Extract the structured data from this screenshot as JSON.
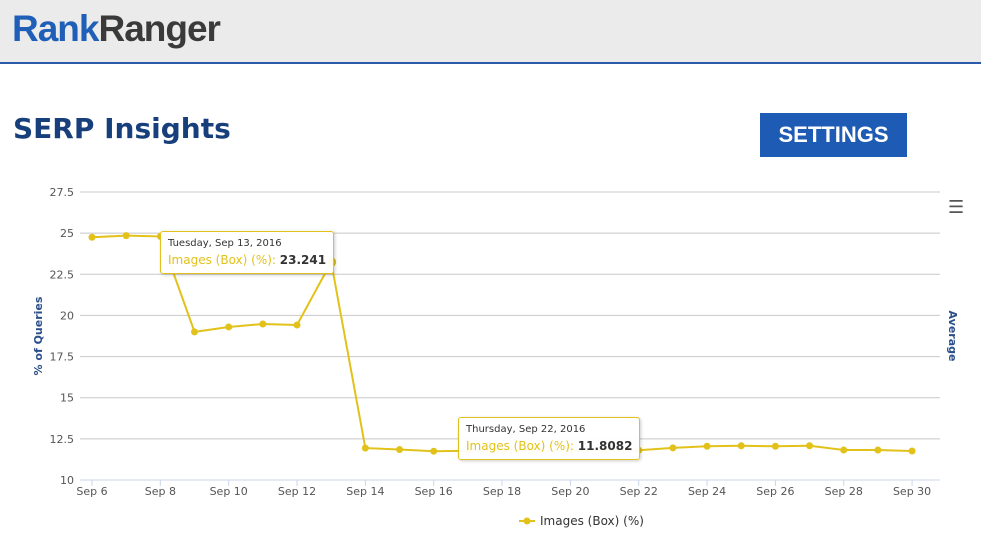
{
  "header": {
    "logo_part1": "Rank",
    "logo_part2": "Ranger"
  },
  "page": {
    "title": "SERP Insights",
    "settings_label": "SETTINGS",
    "menu_icon": "hamburger-icon"
  },
  "chart_data": {
    "type": "line",
    "ylabel": "% of Queries",
    "ylabel_right": "Average",
    "ylim": [
      10,
      27.5
    ],
    "yticks": [
      "10",
      "12.5",
      "15",
      "17.5",
      "20",
      "22.5",
      "25",
      "27.5"
    ],
    "xticks": [
      "Sep 6",
      "Sep 8",
      "Sep 10",
      "Sep 12",
      "Sep 14",
      "Sep 16",
      "Sep 18",
      "Sep 20",
      "Sep 22",
      "Sep 24",
      "Sep 26",
      "Sep 28",
      "Sep 30"
    ],
    "color": "#e2c21a",
    "x": [
      "Sep 6",
      "Sep 7",
      "Sep 8",
      "Sep 9",
      "Sep 10",
      "Sep 11",
      "Sep 12",
      "Sep 13",
      "Sep 14",
      "Sep 15",
      "Sep 16",
      "Sep 17",
      "Sep 18",
      "Sep 19",
      "Sep 20",
      "Sep 21",
      "Sep 22",
      "Sep 23",
      "Sep 24",
      "Sep 25",
      "Sep 26",
      "Sep 27",
      "Sep 28",
      "Sep 29",
      "Sep 30"
    ],
    "series": [
      {
        "name": "Images (Box) (%)",
        "values": [
          24.75,
          24.85,
          24.8,
          19.0,
          19.3,
          19.48,
          19.42,
          23.241,
          11.94,
          11.85,
          11.75,
          11.78,
          11.8,
          11.8,
          11.8,
          11.8,
          11.8082,
          11.95,
          12.05,
          12.08,
          12.05,
          12.08,
          11.82,
          11.82,
          11.76
        ]
      }
    ],
    "legend": "bottom-center",
    "tooltips": [
      {
        "date": "Tuesday, Sep 13, 2016",
        "label": "Images (Box) (%)",
        "value": "23.241"
      },
      {
        "date": "Thursday, Sep 22, 2016",
        "label": "Images (Box) (%)",
        "value": "11.8082"
      }
    ]
  }
}
